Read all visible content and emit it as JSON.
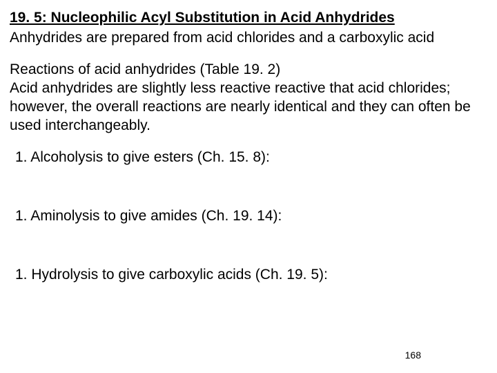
{
  "title": "19. 5: Nucleophilic Acyl Substitution in Acid Anhydrides",
  "subtitle": "Anhydrides are prepared from acid chlorides and a carboxylic acid",
  "section": {
    "heading": "Reactions of acid anhydrides (Table 19. 2)",
    "body": "Acid anhydrides are slightly less reactive reactive that acid chlorides; however, the overall reactions are nearly identical and they can often be used interchangeably."
  },
  "list": [
    {
      "number": "1.",
      "text": "Alcoholysis to give esters (Ch. 15. 8):"
    },
    {
      "number": "1.",
      "text": "Aminolysis to give amides (Ch. 19. 14):"
    },
    {
      "number": "1.",
      "text": "Hydrolysis to give carboxylic acids (Ch. 19. 5):"
    }
  ],
  "pageNumber": "168",
  "colors": {
    "background": "#ffffff",
    "text": "#000000"
  },
  "typography": {
    "fontFamily": "Arial",
    "titleSize": 21,
    "bodySize": 21,
    "pageNumSize": 14
  }
}
